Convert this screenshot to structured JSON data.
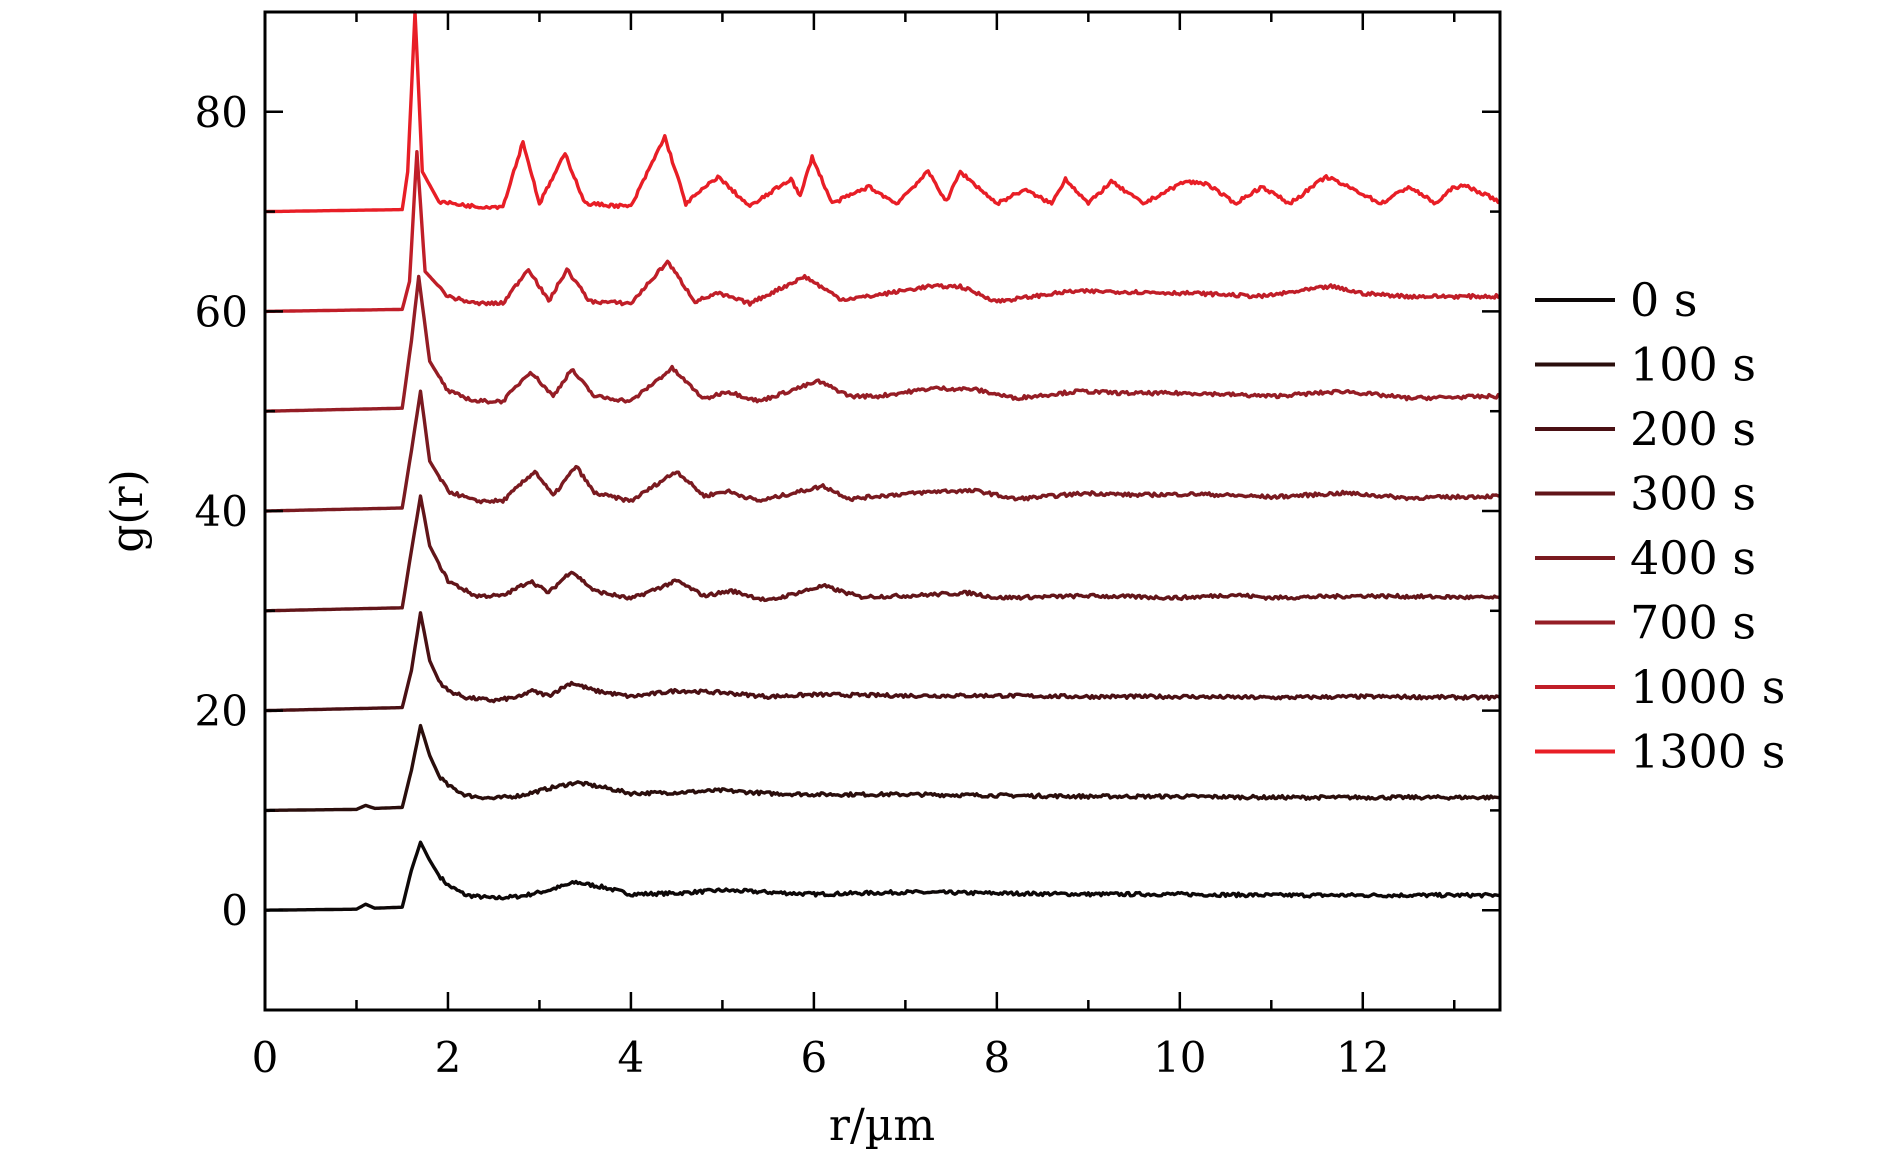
{
  "chart_data": {
    "type": "line",
    "title": "",
    "xlabel": "r/µm",
    "ylabel": "g(r)",
    "xlim": [
      0,
      13.5
    ],
    "ylim": [
      -10,
      90
    ],
    "xticks": [
      0,
      2,
      4,
      6,
      8,
      10,
      12
    ],
    "yticks": [
      0,
      20,
      40,
      60,
      80
    ],
    "legend_position": "right",
    "grid": false,
    "series": [
      {
        "name": "0 s",
        "offset": 0,
        "color": "#0d0808",
        "x": [
          0,
          1.0,
          1.1,
          1.2,
          1.5,
          1.6,
          1.7,
          1.8,
          1.9,
          2.0,
          2.2,
          2.5,
          2.8,
          3.1,
          3.4,
          3.7,
          4.0,
          4.5,
          5.0,
          5.5,
          6.0,
          7.0,
          8.0,
          9.0,
          10.0,
          11.0,
          12.0,
          13.5
        ],
        "y": [
          0,
          0.1,
          0.6,
          0.2,
          0.3,
          4.0,
          6.8,
          5.0,
          3.5,
          2.5,
          1.5,
          1.2,
          1.4,
          2.0,
          2.8,
          2.3,
          1.6,
          1.7,
          2.0,
          1.8,
          1.6,
          1.8,
          1.7,
          1.6,
          1.6,
          1.5,
          1.5,
          1.5
        ]
      },
      {
        "name": "100 s",
        "offset": 10,
        "color": "#2a0e0c",
        "x": [
          0,
          1.0,
          1.1,
          1.2,
          1.5,
          1.6,
          1.7,
          1.8,
          1.9,
          2.0,
          2.2,
          2.5,
          2.8,
          3.1,
          3.4,
          3.7,
          4.0,
          4.5,
          5.0,
          5.5,
          6.0,
          7.0,
          8.0,
          9.0,
          10.0,
          11.0,
          12.0,
          13.5
        ],
        "y": [
          10,
          10.1,
          10.5,
          10.2,
          10.3,
          14.0,
          18.5,
          15.5,
          13.5,
          12.5,
          11.5,
          11.2,
          11.5,
          12.2,
          12.8,
          12.3,
          11.7,
          11.8,
          12.0,
          11.7,
          11.6,
          11.6,
          11.5,
          11.4,
          11.4,
          11.3,
          11.3,
          11.3
        ]
      },
      {
        "name": "200 s",
        "offset": 20,
        "color": "#4a1014",
        "x": [
          0,
          1.5,
          1.6,
          1.7,
          1.8,
          1.9,
          2.0,
          2.2,
          2.5,
          2.8,
          2.9,
          3.1,
          3.35,
          3.6,
          4.0,
          4.5,
          5.0,
          5.5,
          6.0,
          7.0,
          8.0,
          9.0,
          10.0,
          11.0,
          12.0,
          13.5
        ],
        "y": [
          20,
          20.3,
          24.0,
          29.8,
          25.0,
          23.0,
          22.0,
          21.3,
          21.0,
          21.4,
          22.0,
          21.5,
          22.8,
          22.0,
          21.4,
          22.0,
          21.8,
          21.4,
          21.6,
          21.5,
          21.5,
          21.4,
          21.4,
          21.3,
          21.4,
          21.3
        ]
      },
      {
        "name": "300 s",
        "offset": 30,
        "color": "#621519",
        "x": [
          0,
          1.5,
          1.6,
          1.7,
          1.8,
          2.0,
          2.3,
          2.6,
          2.9,
          3.1,
          3.35,
          3.6,
          4.0,
          4.5,
          4.8,
          5.1,
          5.5,
          6.1,
          6.5,
          7.0,
          7.7,
          8.0,
          9.0,
          10.0,
          10.6,
          11.0,
          12.0,
          13.5
        ],
        "y": [
          30,
          30.3,
          36.0,
          41.5,
          36.5,
          33.0,
          31.5,
          31.5,
          33.0,
          31.8,
          34.0,
          32.0,
          31.2,
          33.0,
          31.5,
          32.0,
          31.0,
          32.5,
          31.4,
          31.5,
          31.8,
          31.3,
          31.5,
          31.3,
          31.6,
          31.3,
          31.5,
          31.3
        ]
      },
      {
        "name": "400 s",
        "offset": 40,
        "color": "#7a1a20",
        "x": [
          0,
          1.5,
          1.6,
          1.7,
          1.8,
          2.0,
          2.3,
          2.6,
          2.95,
          3.15,
          3.4,
          3.6,
          4.0,
          4.5,
          4.8,
          5.05,
          5.4,
          6.1,
          6.4,
          6.7,
          7.4,
          7.8,
          8.2,
          9.0,
          9.5,
          10.2,
          11.0,
          11.8,
          12.5,
          13.5
        ],
        "y": [
          40,
          40.3,
          46.0,
          52.0,
          45.0,
          42.0,
          41.0,
          41.0,
          44.0,
          41.5,
          44.5,
          41.8,
          41.0,
          44.0,
          41.5,
          42.0,
          41.0,
          42.5,
          41.2,
          41.5,
          42.0,
          42.0,
          41.2,
          41.8,
          41.6,
          41.7,
          41.4,
          41.8,
          41.3,
          41.5
        ]
      },
      {
        "name": "700 s",
        "offset": 50,
        "color": "#951d25",
        "x": [
          0,
          1.5,
          1.6,
          1.68,
          1.8,
          2.0,
          2.3,
          2.6,
          2.9,
          3.15,
          3.35,
          3.6,
          4.0,
          4.45,
          4.8,
          5.05,
          5.4,
          6.05,
          6.4,
          6.7,
          7.3,
          7.75,
          8.2,
          8.9,
          9.4,
          10.2,
          11.0,
          11.8,
          12.5,
          13.5
        ],
        "y": [
          50,
          50.3,
          57.0,
          63.5,
          55.0,
          52.0,
          51.0,
          51.0,
          54.0,
          51.5,
          54.2,
          51.5,
          51.0,
          54.3,
          51.2,
          52.0,
          51.0,
          53.0,
          51.5,
          51.5,
          52.3,
          52.2,
          51.3,
          52.0,
          51.8,
          51.8,
          51.5,
          52.0,
          51.3,
          51.5
        ]
      },
      {
        "name": "1000 s",
        "offset": 60,
        "color": "#c01e28",
        "x": [
          0,
          1.5,
          1.58,
          1.66,
          1.75,
          2.0,
          2.3,
          2.6,
          2.88,
          3.1,
          3.3,
          3.55,
          4.0,
          4.4,
          4.7,
          4.95,
          5.3,
          5.9,
          6.3,
          6.6,
          7.25,
          7.6,
          8.0,
          8.8,
          9.2,
          10.2,
          10.9,
          11.65,
          12.0,
          12.5,
          13.5
        ],
        "y": [
          60,
          60.2,
          63.0,
          76.0,
          64.0,
          61.5,
          60.8,
          60.8,
          64.3,
          61.0,
          64.2,
          61.0,
          60.8,
          65.0,
          61.0,
          61.8,
          60.8,
          63.5,
          61.2,
          61.5,
          62.5,
          62.5,
          61.0,
          62.0,
          62.0,
          61.8,
          61.5,
          62.5,
          61.8,
          61.5,
          61.5
        ]
      },
      {
        "name": "1300 s",
        "offset": 70,
        "color": "#e81e26",
        "x": [
          0,
          1.5,
          1.56,
          1.64,
          1.72,
          1.9,
          2.3,
          2.6,
          2.82,
          3.0,
          3.28,
          3.5,
          4.0,
          4.37,
          4.6,
          4.95,
          5.3,
          5.75,
          5.85,
          5.98,
          6.2,
          6.6,
          6.9,
          7.25,
          7.45,
          7.6,
          8.0,
          8.3,
          8.6,
          8.75,
          9.0,
          9.25,
          9.6,
          10.05,
          10.3,
          10.6,
          10.9,
          11.2,
          11.6,
          11.95,
          12.2,
          12.5,
          12.8,
          13.0,
          13.15,
          13.5
        ],
        "y": [
          70,
          70.2,
          74.0,
          90.0,
          74.0,
          71.0,
          70.5,
          70.5,
          77.0,
          70.8,
          75.8,
          70.8,
          70.5,
          77.5,
          70.8,
          73.5,
          70.5,
          73.3,
          71.5,
          75.5,
          70.8,
          72.5,
          70.8,
          74.0,
          71.0,
          74.0,
          70.8,
          72.2,
          70.8,
          73.3,
          70.8,
          73.0,
          70.8,
          73.0,
          72.8,
          70.8,
          72.5,
          70.8,
          73.5,
          72.0,
          70.8,
          72.5,
          70.8,
          72.5,
          72.5,
          71.0
        ]
      }
    ]
  }
}
